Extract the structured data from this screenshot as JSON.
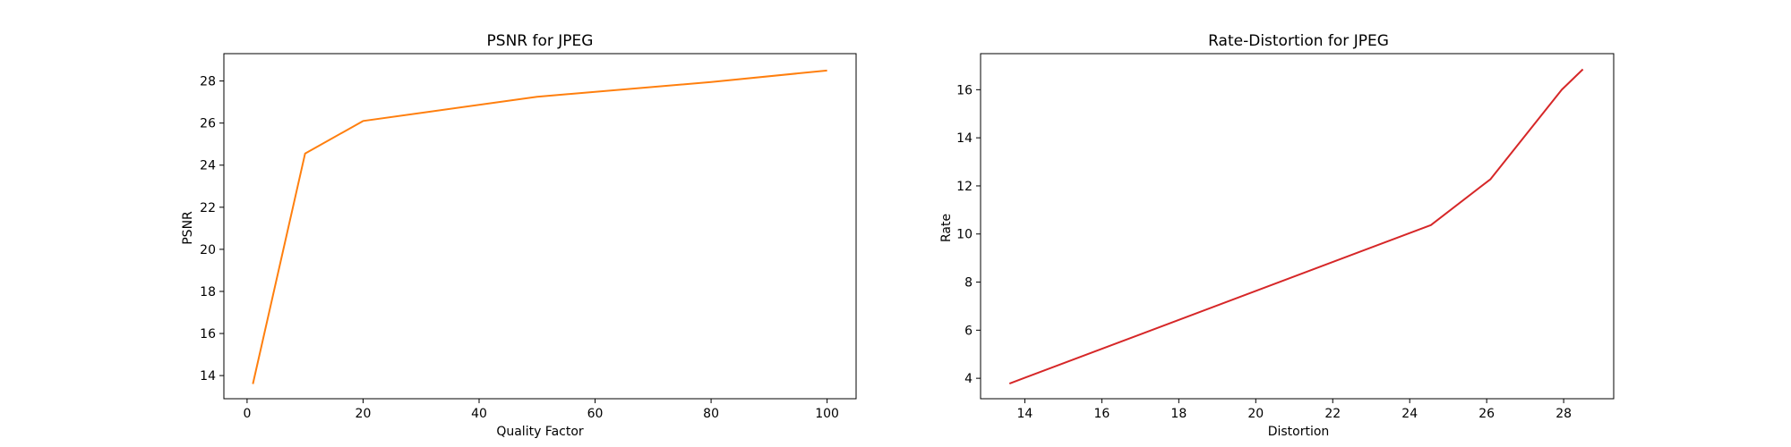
{
  "chart_data": [
    {
      "type": "line",
      "title": "PSNR for JPEG",
      "xlabel": "Quality Factor",
      "ylabel": "PSNR",
      "xlim": [
        -4,
        105
      ],
      "ylim": [
        12.9,
        29.3
      ],
      "xticks": [
        0,
        20,
        40,
        60,
        80,
        100
      ],
      "yticks": [
        14,
        16,
        18,
        20,
        22,
        24,
        26,
        28
      ],
      "grid": false,
      "series": [
        {
          "color": "#ff7f0e",
          "x": [
            1,
            10,
            20,
            50,
            80,
            100
          ],
          "y": [
            13.6,
            24.55,
            26.1,
            27.25,
            27.95,
            28.5
          ]
        }
      ]
    },
    {
      "type": "line",
      "title": "Rate-Distortion for JPEG",
      "xlabel": "Distortion",
      "ylabel": "Rate",
      "xlim": [
        12.85,
        29.3
      ],
      "ylim": [
        3.15,
        17.5
      ],
      "xticks": [
        14,
        16,
        18,
        20,
        22,
        24,
        26,
        28
      ],
      "yticks": [
        4,
        6,
        8,
        10,
        12,
        14,
        16
      ],
      "grid": false,
      "series": [
        {
          "color": "#d62728",
          "x": [
            13.6,
            24.55,
            26.1,
            27.95,
            28.5
          ],
          "y": [
            3.78,
            10.37,
            12.28,
            16.0,
            16.85
          ]
        }
      ]
    }
  ]
}
